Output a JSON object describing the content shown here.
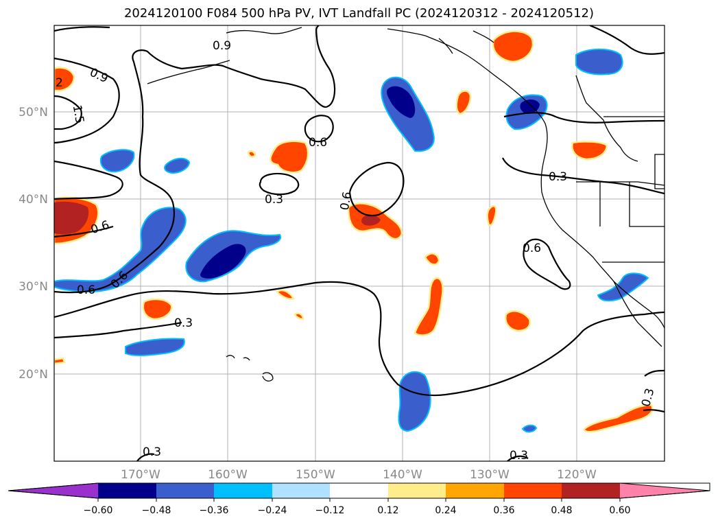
{
  "title": "2024120100 F084 500 hPa PV, IVT Landfall PC (2024120312 - 2024120512)",
  "latitude_labels": [
    "50°N",
    "40°N",
    "30°N",
    "20°N"
  ],
  "longitude_labels": [
    "170°W",
    "160°W",
    "150°W",
    "140°W",
    "130°W",
    "120°W"
  ],
  "contour_labels": [
    "0.9",
    "0.9",
    "2",
    "1.5",
    "0.6",
    "0.3",
    "0.6",
    "0.6",
    "0.6",
    "0.6",
    "0.3",
    "0.6",
    "0.3",
    "0.3",
    "0.3",
    "0.3"
  ],
  "colorbar": {
    "ticks": [
      "−0.60",
      "−0.48",
      "−0.36",
      "−0.24",
      "−0.12",
      "0.12",
      "0.24",
      "0.36",
      "0.48",
      "0.60"
    ],
    "colors": [
      "#9932cc",
      "#00008b",
      "#3a5fcd",
      "#00bfff",
      "#b0e2ff",
      "#ffffff",
      "#ffec8b",
      "#ffa500",
      "#ff4500",
      "#b22222",
      "#ff82ab"
    ]
  },
  "colors": {
    "neg_strong": "#00008b",
    "neg_mid": "#3a5fcd",
    "neg_edge": "#00bfff",
    "pos_mid": "#ff4500",
    "pos_strong": "#b22222",
    "pos_edge": "#ffec8b",
    "grid": "#b0b0b0",
    "contour": "#000000"
  }
}
